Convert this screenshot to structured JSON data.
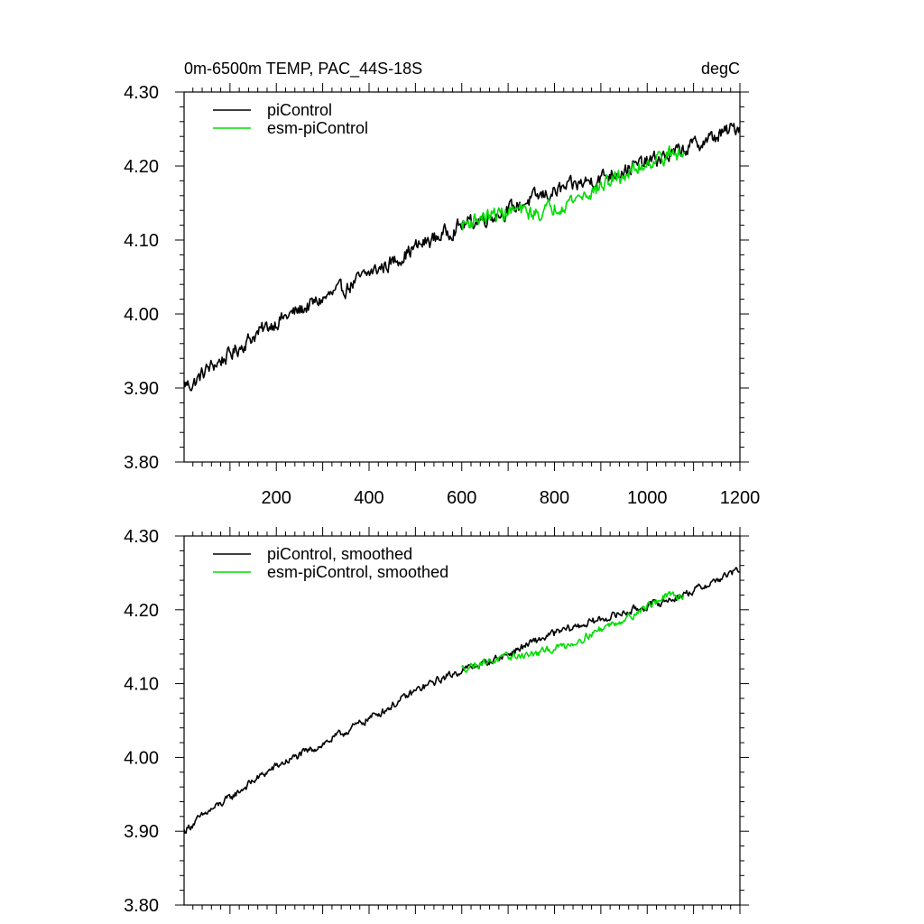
{
  "header": {
    "title_left": "0m-6500m TEMP, PAC_44S-18S",
    "title_right": "degC"
  },
  "colors": {
    "pi": "#000000",
    "esm": "#00dd00"
  },
  "chart_data": [
    {
      "type": "line",
      "title": "0m-6500m TEMP, PAC_44S-18S",
      "units": "degC",
      "xlim": [
        1,
        1200
      ],
      "ylim": [
        3.8,
        4.3
      ],
      "xticks": [
        200,
        400,
        600,
        800,
        1000,
        1200
      ],
      "yticks": [
        3.8,
        3.9,
        4.0,
        4.1,
        4.2,
        4.3
      ],
      "ytick_labels": [
        "3.80",
        "3.90",
        "4.00",
        "4.10",
        "4.20",
        "4.30"
      ],
      "xtick_labels": [
        "200",
        "400",
        "600",
        "800",
        "1000",
        "1200"
      ],
      "series": [
        {
          "name": "piControl",
          "color": "#000000",
          "x": [
            1,
            20,
            50,
            100,
            150,
            200,
            250,
            300,
            350,
            400,
            450,
            500,
            550,
            600,
            650,
            700,
            750,
            800,
            850,
            900,
            950,
            1000,
            1050,
            1100,
            1150,
            1200
          ],
          "values": [
            3.905,
            3.905,
            3.925,
            3.945,
            3.97,
            3.99,
            4.005,
            4.02,
            4.035,
            4.055,
            4.07,
            4.09,
            4.105,
            4.12,
            4.13,
            4.14,
            4.155,
            4.165,
            4.175,
            4.185,
            4.195,
            4.205,
            4.215,
            4.228,
            4.24,
            4.255
          ],
          "noise": 0.008
        },
        {
          "name": "esm-piControl",
          "color": "#00dd00",
          "x": [
            600,
            640,
            680,
            720,
            760,
            800,
            840,
            880,
            920,
            960,
            1000,
            1040,
            1080
          ],
          "values": [
            4.12,
            4.13,
            4.135,
            4.14,
            4.135,
            4.145,
            4.155,
            4.165,
            4.18,
            4.19,
            4.205,
            4.215,
            4.215
          ],
          "noise": 0.008
        }
      ]
    },
    {
      "type": "line",
      "xlim": [
        1,
        1200
      ],
      "ylim": [
        3.8,
        4.3
      ],
      "xticks": [
        200,
        400,
        600,
        800,
        1000,
        1200
      ],
      "yticks": [
        3.8,
        3.9,
        4.0,
        4.1,
        4.2,
        4.3
      ],
      "ytick_labels": [
        "3.80",
        "3.90",
        "4.00",
        "4.10",
        "4.20",
        "4.30"
      ],
      "series": [
        {
          "name": "piControl, smoothed",
          "color": "#000000",
          "x": [
            1,
            20,
            50,
            100,
            150,
            200,
            250,
            300,
            350,
            400,
            450,
            500,
            550,
            600,
            650,
            700,
            750,
            800,
            850,
            900,
            950,
            1000,
            1050,
            1100,
            1150,
            1200
          ],
          "values": [
            3.9,
            3.91,
            3.925,
            3.945,
            3.968,
            3.988,
            4.003,
            4.018,
            4.035,
            4.053,
            4.07,
            4.09,
            4.105,
            4.118,
            4.128,
            4.14,
            4.155,
            4.168,
            4.178,
            4.187,
            4.196,
            4.205,
            4.214,
            4.226,
            4.24,
            4.255
          ],
          "noise": 0.004
        },
        {
          "name": "esm-piControl, smoothed",
          "color": "#00dd00",
          "x": [
            600,
            640,
            680,
            720,
            760,
            800,
            840,
            880,
            920,
            960,
            1000,
            1040,
            1080
          ],
          "values": [
            4.12,
            4.128,
            4.133,
            4.138,
            4.14,
            4.148,
            4.155,
            4.168,
            4.18,
            4.19,
            4.205,
            4.218,
            4.22
          ],
          "noise": 0.004
        }
      ]
    }
  ]
}
